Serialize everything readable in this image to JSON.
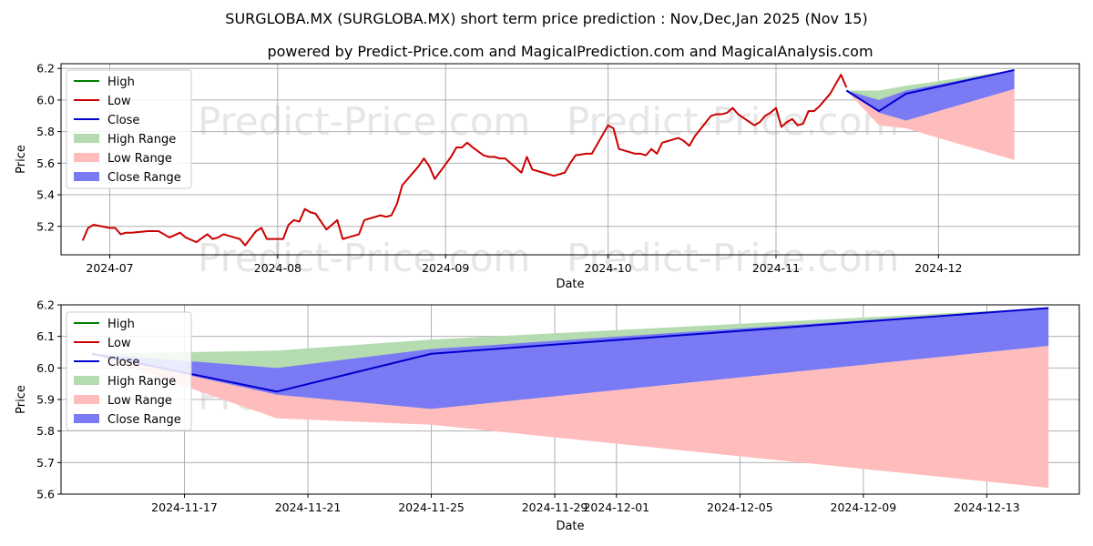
{
  "header": {
    "title": "SURGLOBA.MX (SURGLOBA.MX) short term price prediction : Nov,Dec,Jan 2025 (Nov 15)",
    "subtitle": "powered by Predict-Price.com and MagicalPrediction.com and MagicalAnalysis.com"
  },
  "watermark": "Predict-Price.com",
  "colors": {
    "high": "#008000",
    "low": "#cc0000",
    "close": "#0000cc",
    "high_range": "#b5dbb0",
    "low_range": "#ffbcbc",
    "close_range": "#7a7af5"
  },
  "chart_data": [
    {
      "type": "line",
      "xlabel": "Date",
      "ylabel": "Price",
      "xlim": [
        "2024-06-22",
        "2024-12-27"
      ],
      "ylim": [
        5.02,
        6.23
      ],
      "yticks": [
        5.2,
        5.4,
        5.6,
        5.8,
        6.0,
        6.2
      ],
      "ytick_labels": [
        "5.2",
        "5.4",
        "5.6",
        "5.8",
        "6.0",
        "6.2"
      ],
      "xticks": [
        "2024-07-01",
        "2024-08-01",
        "2024-09-01",
        "2024-10-01",
        "2024-11-01",
        "2024-12-01"
      ],
      "xtick_labels": [
        "2024-07",
        "2024-08",
        "2024-09",
        "2024-10",
        "2024-11",
        "2024-12"
      ],
      "grid": true,
      "legend": {
        "position": "top-left",
        "entries": [
          {
            "label": "High",
            "kind": "line",
            "color": "#008000"
          },
          {
            "label": "Low",
            "kind": "line",
            "color": "#cc0000"
          },
          {
            "label": "Close",
            "kind": "line",
            "color": "#0000cc"
          },
          {
            "label": "High Range",
            "kind": "patch",
            "color": "#b5dbb0"
          },
          {
            "label": "Low Range",
            "kind": "patch",
            "color": "#ffbcbc"
          },
          {
            "label": "Close Range",
            "kind": "patch",
            "color": "#7a7af5"
          }
        ]
      },
      "history": {
        "name": "Low",
        "x": [
          "2024-06-26",
          "2024-06-27",
          "2024-06-28",
          "2024-07-01",
          "2024-07-02",
          "2024-07-03",
          "2024-07-04",
          "2024-07-05",
          "2024-07-08",
          "2024-07-10",
          "2024-07-11",
          "2024-07-12",
          "2024-07-14",
          "2024-07-15",
          "2024-07-17",
          "2024-07-19",
          "2024-07-20",
          "2024-07-21",
          "2024-07-22",
          "2024-07-24",
          "2024-07-25",
          "2024-07-26",
          "2024-07-28",
          "2024-07-29",
          "2024-07-30",
          "2024-07-31",
          "2024-08-01",
          "2024-08-02",
          "2024-08-03",
          "2024-08-04",
          "2024-08-05",
          "2024-08-06",
          "2024-08-07",
          "2024-08-08",
          "2024-08-10",
          "2024-08-12",
          "2024-08-13",
          "2024-08-15",
          "2024-08-16",
          "2024-08-17",
          "2024-08-20",
          "2024-08-21",
          "2024-08-22",
          "2024-08-23",
          "2024-08-24",
          "2024-08-27",
          "2024-08-28",
          "2024-08-29",
          "2024-08-30",
          "2024-09-02",
          "2024-09-03",
          "2024-09-04",
          "2024-09-05",
          "2024-09-06",
          "2024-09-08",
          "2024-09-09",
          "2024-09-10",
          "2024-09-11",
          "2024-09-12",
          "2024-09-15",
          "2024-09-16",
          "2024-09-17",
          "2024-09-18",
          "2024-09-20",
          "2024-09-21",
          "2024-09-23",
          "2024-09-24",
          "2024-09-25",
          "2024-09-27",
          "2024-09-28",
          "2024-10-01",
          "2024-10-02",
          "2024-10-03",
          "2024-10-06",
          "2024-10-07",
          "2024-10-08",
          "2024-10-09",
          "2024-10-10",
          "2024-10-11",
          "2024-10-14",
          "2024-10-15",
          "2024-10-16",
          "2024-10-17",
          "2024-10-20",
          "2024-10-21",
          "2024-10-22",
          "2024-10-23",
          "2024-10-24",
          "2024-10-25",
          "2024-10-28",
          "2024-10-29",
          "2024-10-30",
          "2024-10-31",
          "2024-11-01",
          "2024-11-02",
          "2024-11-03",
          "2024-11-04",
          "2024-11-05",
          "2024-11-06",
          "2024-11-07",
          "2024-11-08",
          "2024-11-09",
          "2024-11-10",
          "2024-11-11",
          "2024-11-12",
          "2024-11-13",
          "2024-11-14"
        ],
        "values": [
          5.11,
          5.19,
          5.21,
          5.19,
          5.19,
          5.15,
          5.16,
          5.16,
          5.17,
          5.17,
          5.15,
          5.13,
          5.16,
          5.13,
          5.1,
          5.15,
          5.12,
          5.13,
          5.15,
          5.13,
          5.12,
          5.08,
          5.17,
          5.19,
          5.12,
          5.12,
          5.12,
          5.12,
          5.21,
          5.24,
          5.23,
          5.31,
          5.29,
          5.28,
          5.18,
          5.24,
          5.12,
          5.14,
          5.15,
          5.24,
          5.27,
          5.26,
          5.27,
          5.34,
          5.46,
          5.58,
          5.63,
          5.58,
          5.5,
          5.64,
          5.7,
          5.7,
          5.73,
          5.7,
          5.65,
          5.64,
          5.64,
          5.63,
          5.63,
          5.54,
          5.64,
          5.56,
          5.55,
          5.53,
          5.52,
          5.54,
          5.6,
          5.65,
          5.66,
          5.66,
          5.84,
          5.82,
          5.69,
          5.66,
          5.66,
          5.65,
          5.69,
          5.66,
          5.73,
          5.76,
          5.74,
          5.71,
          5.77,
          5.9,
          5.91,
          5.91,
          5.92,
          5.95,
          5.91,
          5.84,
          5.86,
          5.9,
          5.92,
          5.95,
          5.83,
          5.86,
          5.88,
          5.84,
          5.85,
          5.93,
          5.93,
          5.96,
          6.0,
          6.04,
          6.1,
          6.16,
          6.08
        ]
      },
      "forecast": {
        "x": [
          "2024-11-14",
          "2024-11-20",
          "2024-11-25",
          "2024-12-15"
        ],
        "close": [
          6.06,
          5.93,
          6.04,
          6.19
        ],
        "high_range_upper": [
          6.06,
          6.06,
          6.09,
          6.19
        ],
        "low_range_lower": [
          6.06,
          5.84,
          5.82,
          5.62
        ],
        "close_range_upper": [
          6.06,
          6.0,
          6.06,
          6.19
        ],
        "close_range_lower": [
          6.06,
          5.92,
          5.87,
          6.07
        ]
      }
    },
    {
      "type": "line",
      "xlabel": "Date",
      "ylabel": "Price",
      "xlim": [
        "2024-11-13",
        "2024-12-16"
      ],
      "ylim": [
        5.6,
        6.2
      ],
      "yticks": [
        5.6,
        5.7,
        5.8,
        5.9,
        6.0,
        6.1,
        6.2
      ],
      "ytick_labels": [
        "5.6",
        "5.7",
        "5.8",
        "5.9",
        "6.0",
        "6.1",
        "6.2"
      ],
      "xticks": [
        "2024-11-17",
        "2024-11-21",
        "2024-11-25",
        "2024-11-29",
        "2024-12-01",
        "2024-12-05",
        "2024-12-09",
        "2024-12-13"
      ],
      "xtick_labels": [
        "2024-11-17",
        "2024-11-21",
        "2024-11-25",
        "2024-11-29",
        "2024-12-01",
        "2024-12-05",
        "2024-12-09",
        "2024-12-13"
      ],
      "grid": true,
      "legend": {
        "position": "top-left",
        "entries": [
          {
            "label": "High",
            "kind": "line",
            "color": "#008000"
          },
          {
            "label": "Low",
            "kind": "line",
            "color": "#cc0000"
          },
          {
            "label": "Close",
            "kind": "line",
            "color": "#0000cc"
          },
          {
            "label": "High Range",
            "kind": "patch",
            "color": "#b5dbb0"
          },
          {
            "label": "Low Range",
            "kind": "patch",
            "color": "#ffbcbc"
          },
          {
            "label": "Close Range",
            "kind": "patch",
            "color": "#7a7af5"
          }
        ]
      },
      "forecast": {
        "x": [
          "2024-11-14",
          "2024-11-20",
          "2024-11-25",
          "2024-12-15"
        ],
        "close": [
          6.045,
          5.925,
          6.045,
          6.19
        ],
        "high_range_upper": [
          6.045,
          6.055,
          6.09,
          6.19
        ],
        "low_range_lower": [
          6.045,
          5.84,
          5.82,
          5.62
        ],
        "close_range_upper": [
          6.045,
          6.0,
          6.06,
          6.19
        ],
        "close_range_lower": [
          6.045,
          5.915,
          5.87,
          6.07
        ]
      }
    }
  ]
}
